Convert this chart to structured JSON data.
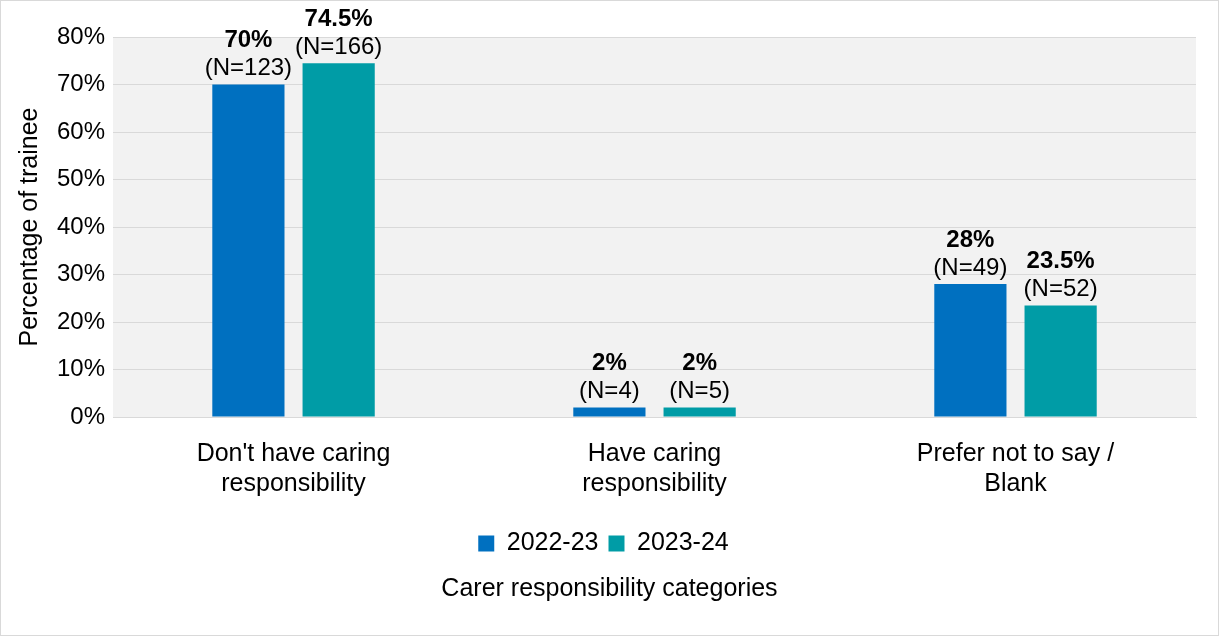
{
  "chart_data": {
    "type": "bar",
    "xlabel": "Carer responsibility categories",
    "ylabel": "Percentage of trainee",
    "categories": [
      "Don't have caring responsibility",
      "Have caring responsibility",
      "Prefer not to say / Blank"
    ],
    "series": [
      {
        "name": "2022-23",
        "color": "#0070c0",
        "values": [
          70,
          2,
          28
        ],
        "value_labels": [
          "70%\n(N=123)",
          "2%\n(N=4)",
          "28%\n(N=49)"
        ]
      },
      {
        "name": "2023-24",
        "color": "#009ca6",
        "values": [
          74.5,
          2,
          23.5
        ],
        "value_labels": [
          "74.5%\n(N=166)",
          "2%\n(N=5)",
          "23.5%\n(N=52)"
        ]
      }
    ],
    "ylim": [
      0,
      80
    ],
    "yticks": [
      {
        "value": 0,
        "label": "0%"
      },
      {
        "value": 10,
        "label": "10%"
      },
      {
        "value": 20,
        "label": "20%"
      },
      {
        "value": 30,
        "label": "30%"
      },
      {
        "value": 40,
        "label": "40%"
      },
      {
        "value": 50,
        "label": "50%"
      },
      {
        "value": 60,
        "label": "60%"
      },
      {
        "value": 70,
        "label": "70%"
      },
      {
        "value": 80,
        "label": "80%"
      }
    ],
    "grid": "y",
    "legend": "bottom"
  }
}
